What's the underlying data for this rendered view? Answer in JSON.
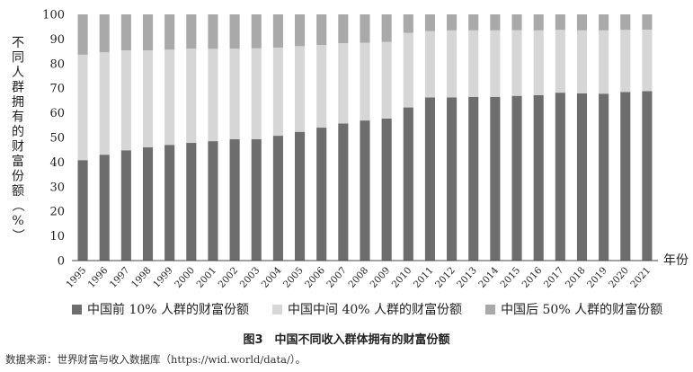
{
  "chart_data": {
    "type": "bar",
    "stacked": true,
    "categories": [
      "1995",
      "1996",
      "1997",
      "1998",
      "1999",
      "2000",
      "2001",
      "2002",
      "2003",
      "2004",
      "2005",
      "2006",
      "2007",
      "2008",
      "2009",
      "2010",
      "2011",
      "2012",
      "2013",
      "2014",
      "2015",
      "2016",
      "2017",
      "2018",
      "2019",
      "2020",
      "2021"
    ],
    "series": [
      {
        "name": "中国前 10% 人群的财富份额",
        "color": "#6d6d6d",
        "values": [
          40.8,
          43.0,
          44.8,
          46.0,
          47.0,
          47.8,
          48.5,
          49.3,
          49.3,
          50.7,
          52.3,
          54.0,
          55.7,
          56.9,
          57.7,
          62.2,
          66.3,
          66.3,
          66.5,
          66.5,
          66.9,
          67.2,
          68.2,
          67.9,
          67.8,
          68.5,
          68.8
        ]
      },
      {
        "name": "中国中间 40% 人群的财富份额",
        "color": "#d6d6d6",
        "values": [
          42.8,
          41.6,
          40.6,
          39.4,
          38.7,
          38.3,
          37.5,
          36.8,
          36.9,
          35.8,
          34.8,
          33.6,
          32.6,
          31.6,
          31.1,
          30.3,
          26.9,
          27.2,
          27.0,
          27.0,
          26.7,
          26.3,
          25.5,
          25.6,
          25.7,
          25.2,
          25.0
        ]
      },
      {
        "name": "中国后 50% 人群的财富份额",
        "color": "#a9a9a9",
        "values": [
          16.4,
          15.4,
          14.6,
          14.6,
          14.3,
          13.9,
          14.0,
          13.9,
          13.8,
          13.5,
          12.9,
          12.4,
          11.7,
          11.5,
          11.2,
          7.5,
          6.8,
          6.5,
          6.5,
          6.5,
          6.4,
          6.5,
          6.3,
          6.5,
          6.5,
          6.3,
          6.2
        ]
      }
    ],
    "ylabel": "不同人群拥有的财富份额（%）",
    "xlabel": "年份",
    "ylim": [
      0,
      100
    ],
    "yticks": [
      0,
      10,
      20,
      30,
      40,
      50,
      60,
      70,
      80,
      90,
      100
    ],
    "grid": false,
    "legend_position": "bottom"
  },
  "figure": {
    "title": "图3　中国不同收入群体拥有的财富份额",
    "source": "数据来源：世界财富与收入数据库（https://wid.world/data/）。"
  }
}
